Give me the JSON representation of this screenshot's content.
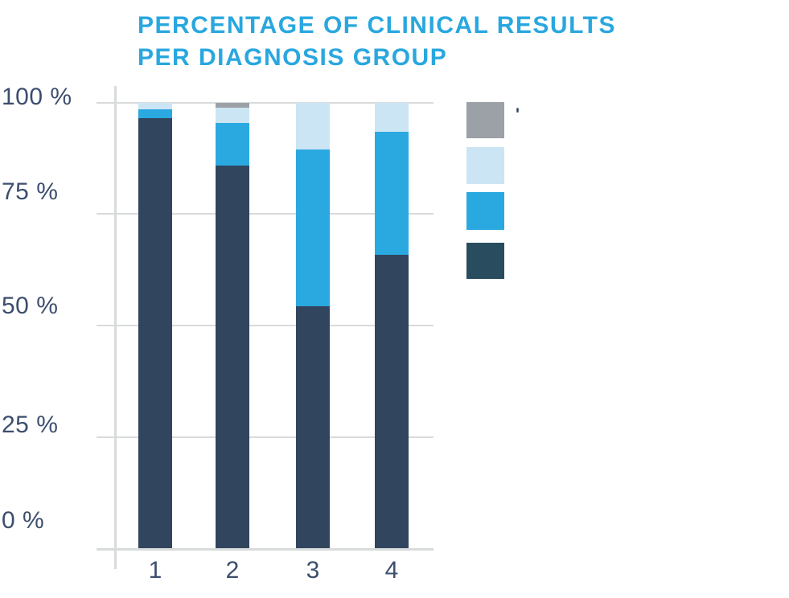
{
  "title": {
    "line1": "PERCENTAGE OF CLINICAL RESULTS",
    "line2": "PER DIAGNOSIS GROUP"
  },
  "colors": {
    "background": "#FFFFFF",
    "accent_blue": "#29A7DF",
    "axis_label": "#3C4E6E",
    "grid": "#D8DBDC",
    "bar_dark_navy": "#32455F",
    "bar_medium_blue": "#2AA9E0",
    "bar_light_blue": "#CBE5F5",
    "bar_gray": "#9BA1A6",
    "legend_dark_navy": "#294C5E"
  },
  "y_axis": {
    "labels": [
      "100 %",
      "75 %",
      "50 %",
      "25 %",
      "0 %"
    ]
  },
  "x_axis": {
    "labels": [
      "1",
      "2",
      "3",
      "4"
    ]
  },
  "legend": {
    "items": [
      {
        "name": "gray",
        "label": "",
        "color": "#9BA1A6"
      },
      {
        "name": "light-blue",
        "label": "",
        "color": "#CBE5F5"
      },
      {
        "name": "medium-blue",
        "label": "",
        "color": "#2AA9E0"
      },
      {
        "name": "dark-navy",
        "label": "",
        "color": "#294C5E"
      }
    ],
    "remnant": "'"
  },
  "chart_data": {
    "type": "bar",
    "stacked": true,
    "title": "PERCENTAGE OF CLINICAL RESULTS PER DIAGNOSIS GROUP",
    "categories": [
      "1",
      "2",
      "3",
      "4"
    ],
    "series": [
      {
        "name": "dark-navy",
        "color": "#32455F",
        "values": [
          96.5,
          86,
          54.5,
          66
        ]
      },
      {
        "name": "medium-blue",
        "color": "#2AA9E0",
        "values": [
          2,
          9.5,
          35,
          27.5
        ]
      },
      {
        "name": "light-blue",
        "color": "#CBE5F5",
        "values": [
          1.5,
          3.5,
          10.5,
          6.5
        ]
      },
      {
        "name": "gray",
        "color": "#9BA1A6",
        "values": [
          0,
          1,
          0,
          0
        ]
      }
    ],
    "ylim": [
      0,
      100
    ],
    "y_ticks": [
      "0 %",
      "25 %",
      "50 %",
      "75 %",
      "100 %"
    ],
    "grid": true,
    "legend_position": "right",
    "legend_labels_visible": false
  }
}
